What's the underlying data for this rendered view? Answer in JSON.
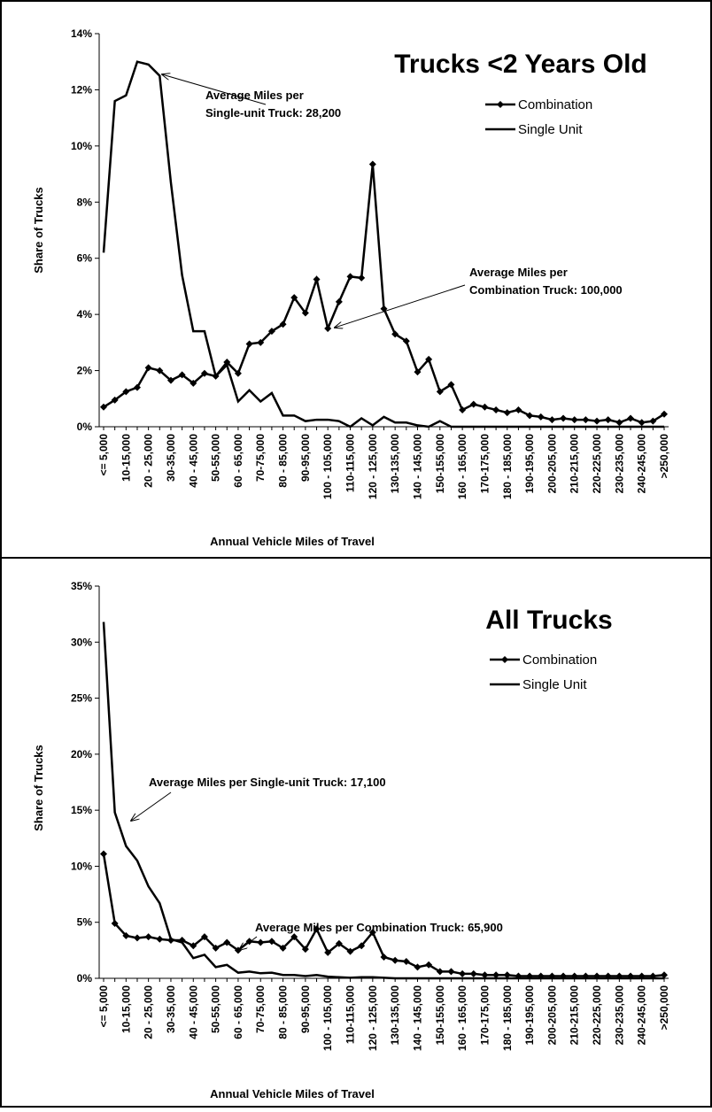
{
  "chart_data": [
    {
      "type": "line",
      "title": "Trucks <2 Years Old",
      "xlabel": "Annual Vehicle Miles of Travel",
      "ylabel": "Share of Trucks",
      "categories": [
        "<= 5,000",
        null,
        "10-15,000",
        null,
        "20 - 25,000",
        null,
        "30-35,000",
        null,
        "40 - 45,000",
        null,
        "50-55,000",
        null,
        "60 - 65,000",
        null,
        "70-75,000",
        null,
        "80 - 85,000",
        null,
        "90-95,000",
        null,
        "100 - 105,000",
        null,
        "110-115,000",
        null,
        "120 - 125,000",
        null,
        "130-135,000",
        null,
        "140 - 145,000",
        null,
        "150-155,000",
        null,
        "160 - 165,000",
        null,
        "170-175,000",
        null,
        "180 - 185,000",
        null,
        "190-195,000",
        null,
        "200-205,000",
        null,
        "210-215,000",
        null,
        "220-225,000",
        null,
        "230-235,000",
        null,
        "240-245,000",
        null,
        ">250,000"
      ],
      "series": [
        {
          "name": "Combination",
          "color": "#000000",
          "marker": "diamond",
          "values": [
            0.7,
            0.95,
            1.25,
            1.4,
            2.1,
            2.0,
            1.65,
            1.85,
            1.55,
            1.9,
            1.8,
            2.3,
            1.9,
            2.95,
            3.0,
            3.4,
            3.65,
            4.6,
            4.05,
            5.25,
            3.5,
            4.45,
            5.35,
            5.3,
            9.35,
            4.2,
            3.3,
            3.05,
            1.95,
            2.4,
            1.25,
            1.5,
            0.6,
            0.8,
            0.7,
            0.6,
            0.5,
            0.6,
            0.4,
            0.35,
            0.25,
            0.3,
            0.25,
            0.25,
            0.2,
            0.25,
            0.15,
            0.3,
            0.15,
            0.2,
            0.45
          ]
        },
        {
          "name": "Single Unit",
          "color": "#000000",
          "marker": "none",
          "values": [
            6.2,
            11.6,
            11.8,
            13.0,
            12.9,
            12.5,
            8.7,
            5.4,
            3.4,
            3.4,
            1.8,
            2.2,
            0.9,
            1.3,
            0.9,
            1.2,
            0.4,
            0.4,
            0.2,
            0.25,
            0.25,
            0.2,
            0.0,
            0.3,
            0.05,
            0.35,
            0.15,
            0.15,
            0.05,
            0.0,
            0.2,
            0,
            0,
            0,
            0,
            0,
            0,
            0,
            0,
            0,
            0,
            0,
            0,
            0,
            0,
            0,
            0,
            0,
            0,
            0,
            0
          ]
        }
      ],
      "ylim": [
        0,
        14
      ],
      "yticks": [
        {
          "value": 0,
          "label": "0%"
        },
        {
          "value": 2,
          "label": "2%"
        },
        {
          "value": 4,
          "label": "4%"
        },
        {
          "value": 6,
          "label": "6%"
        },
        {
          "value": 8,
          "label": "8%"
        },
        {
          "value": 10,
          "label": "10%"
        },
        {
          "value": 12,
          "label": "12%"
        },
        {
          "value": 14,
          "label": "14%"
        }
      ],
      "legend": "upper right",
      "annotations": [
        {
          "lines": [
            "Average Miles per",
            "Single-unit Truck: 28,200"
          ]
        },
        {
          "lines": [
            "Average Miles per",
            "Combination Truck: 100,000"
          ]
        }
      ]
    },
    {
      "type": "line",
      "title": "All Trucks",
      "xlabel": "Annual Vehicle Miles of Travel",
      "ylabel": "Share of Trucks",
      "categories": [
        "<= 5,000",
        null,
        "10-15,000",
        null,
        "20 - 25,000",
        null,
        "30-35,000",
        null,
        "40 - 45,000",
        null,
        "50-55,000",
        null,
        "60 - 65,000",
        null,
        "70-75,000",
        null,
        "80 - 85,000",
        null,
        "90-95,000",
        null,
        "100 - 105,000",
        null,
        "110-115,000",
        null,
        "120 - 125,000",
        null,
        "130-135,000",
        null,
        "140 - 145,000",
        null,
        "150-155,000",
        null,
        "160 - 165,000",
        null,
        "170-175,000",
        null,
        "180 - 185,000",
        null,
        "190-195,000",
        null,
        "200-205,000",
        null,
        "210-215,000",
        null,
        "220-225,000",
        null,
        "230-235,000",
        null,
        "240-245,000",
        null,
        ">250,000"
      ],
      "series": [
        {
          "name": "Combination",
          "color": "#000000",
          "marker": "diamond",
          "values": [
            11.1,
            4.9,
            3.8,
            3.6,
            3.7,
            3.5,
            3.4,
            3.4,
            2.9,
            3.7,
            2.7,
            3.2,
            2.5,
            3.3,
            3.2,
            3.3,
            2.7,
            3.7,
            2.6,
            4.4,
            2.3,
            3.1,
            2.4,
            2.9,
            4.1,
            1.9,
            1.6,
            1.5,
            1.0,
            1.2,
            0.6,
            0.6,
            0.4,
            0.4,
            0.3,
            0.3,
            0.3,
            0.2,
            0.2,
            0.2,
            0.2,
            0.2,
            0.2,
            0.2,
            0.2,
            0.2,
            0.2,
            0.2,
            0.2,
            0.2,
            0.3
          ]
        },
        {
          "name": "Single Unit",
          "color": "#000000",
          "marker": "none",
          "values": [
            31.8,
            14.8,
            11.8,
            10.5,
            8.2,
            6.7,
            3.5,
            3.2,
            1.8,
            2.1,
            1.0,
            1.2,
            0.5,
            0.6,
            0.45,
            0.5,
            0.3,
            0.3,
            0.2,
            0.3,
            0.15,
            0.1,
            0.05,
            0.1,
            0.1,
            0.05,
            0,
            0,
            0,
            0,
            0,
            0,
            0,
            0,
            0,
            0,
            0,
            0,
            0,
            0,
            0,
            0,
            0,
            0,
            0,
            0,
            0,
            0,
            0,
            0,
            0
          ]
        }
      ],
      "ylim": [
        0,
        35
      ],
      "yticks": [
        {
          "value": 0,
          "label": "0%"
        },
        {
          "value": 5,
          "label": "5%"
        },
        {
          "value": 10,
          "label": "10%"
        },
        {
          "value": 15,
          "label": "15%"
        },
        {
          "value": 20,
          "label": "20%"
        },
        {
          "value": 25,
          "label": "25%"
        },
        {
          "value": 30,
          "label": "30%"
        },
        {
          "value": 35,
          "label": "35%"
        }
      ],
      "legend": "upper right",
      "annotations": [
        {
          "lines": [
            "Average Miles per Single-unit Truck: 17,100"
          ]
        },
        {
          "lines": [
            "Average Miles per Combination Truck: 65,900"
          ]
        }
      ]
    }
  ]
}
